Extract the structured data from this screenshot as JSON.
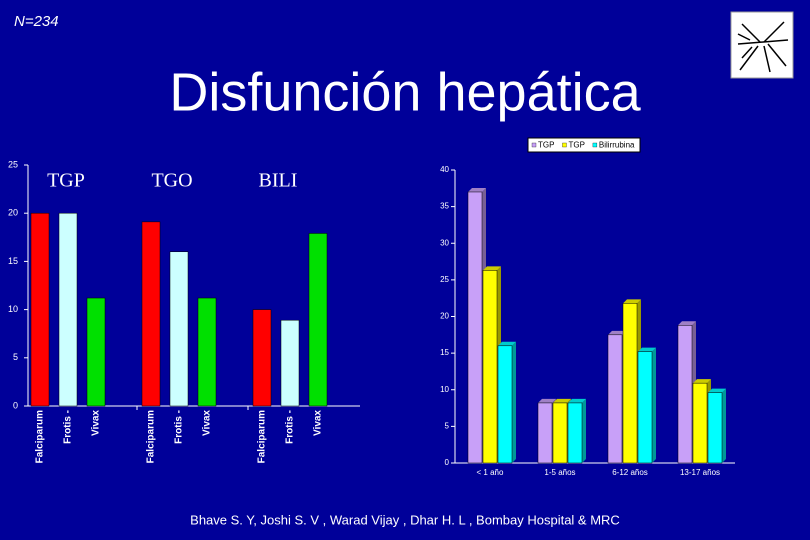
{
  "slide": {
    "note": "N=234",
    "title": "Disfunción hepática",
    "footer": "Bhave S. Y, Joshi S. V , Warad Vijay , Dhar H. L , Bombay Hospital & MRC"
  },
  "chart_data": [
    {
      "type": "bar",
      "groups": [
        "TGP",
        "TGO",
        "BILI"
      ],
      "categories": [
        "Falciparum",
        "Frotis -",
        "Vivax",
        "Falciparum",
        "Frotis -",
        "Vivax",
        "Falciparum",
        "Frotis -",
        "Vivax"
      ],
      "values": [
        20,
        20,
        11.2,
        19.1,
        16,
        11.2,
        10,
        8.9,
        17.9
      ],
      "colors": [
        "#ff0000",
        "#ccffff",
        "#00e000"
      ],
      "ylim": [
        0,
        25
      ],
      "yticks": [
        0,
        5,
        10,
        15,
        20,
        25
      ]
    },
    {
      "type": "bar3d",
      "categories": [
        "< 1 año",
        "1-5 años",
        "6-12 años",
        "13-17 años"
      ],
      "series": [
        {
          "name": "TGP",
          "color": "#c8a0f8",
          "values": [
            37,
            8.2,
            17.5,
            18.8
          ]
        },
        {
          "name": "TGP",
          "color": "#ffff00",
          "values": [
            26.3,
            8.2,
            21.8,
            10.9
          ]
        },
        {
          "name": "Bilirrubina",
          "color": "#00ffff",
          "values": [
            16,
            8.2,
            15.2,
            9.6
          ]
        }
      ],
      "ylim": [
        0,
        40
      ],
      "yticks": [
        0,
        5,
        10,
        15,
        20,
        25,
        30,
        35,
        40
      ],
      "legend": "top-right"
    }
  ]
}
